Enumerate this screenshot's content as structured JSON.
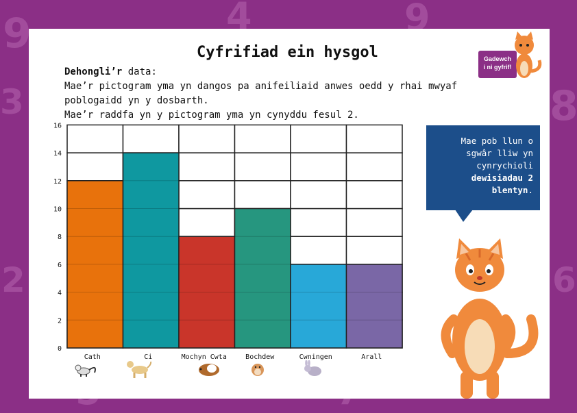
{
  "title": "Cyfrifiad ein hysgol",
  "intro": {
    "lead": "Dehongli’r",
    "lead_rest": " data:",
    "line1": "Mae’r pictogram yma yn dangos pa anifeiliaid anwes oedd y rhai mwyaf poblogaidd yn y dosbarth.",
    "line2": "Mae’r raddfa yn y pictogram yma yn cynyddu fesul 2."
  },
  "badge": {
    "line1": "Gadewch",
    "line2": "i ni gyfrif!"
  },
  "info": {
    "text": "Mae pob llun o sgwâr lliw yn cynrychioli ",
    "bold": "dewisiadau 2 blentyn",
    "end": "."
  },
  "colors": {
    "background": "#8b2f86",
    "cath": "#e8720c",
    "ci": "#0f98a0",
    "mochyn": "#c9352a",
    "bochdew": "#26967f",
    "cwningen": "#28a8d8",
    "arall": "#7a67a6",
    "info_box": "#1c4e8a"
  },
  "icons": [
    "cat-icon",
    "dog-icon",
    "guinea-pig-icon",
    "hamster-icon",
    "rabbit-icon",
    "cartoon-cat-icon"
  ],
  "chart_data": {
    "type": "bar",
    "categories": [
      "Cath",
      "Ci",
      "Mochyn Cwta",
      "Bochdew",
      "Cwningen",
      "Arall"
    ],
    "values": [
      12,
      14,
      8,
      10,
      6,
      6
    ],
    "ylim": [
      0,
      16
    ],
    "yticks": [
      0,
      2,
      4,
      6,
      8,
      10,
      12,
      14,
      16
    ],
    "ytick_labels": [
      "0",
      "2",
      "4",
      "6",
      "8",
      "10",
      "12",
      "14",
      "16"
    ],
    "step": 2,
    "grid": true,
    "colors": [
      "#e8720c",
      "#0f98a0",
      "#c9352a",
      "#26967f",
      "#28a8d8",
      "#7a67a6"
    ]
  }
}
